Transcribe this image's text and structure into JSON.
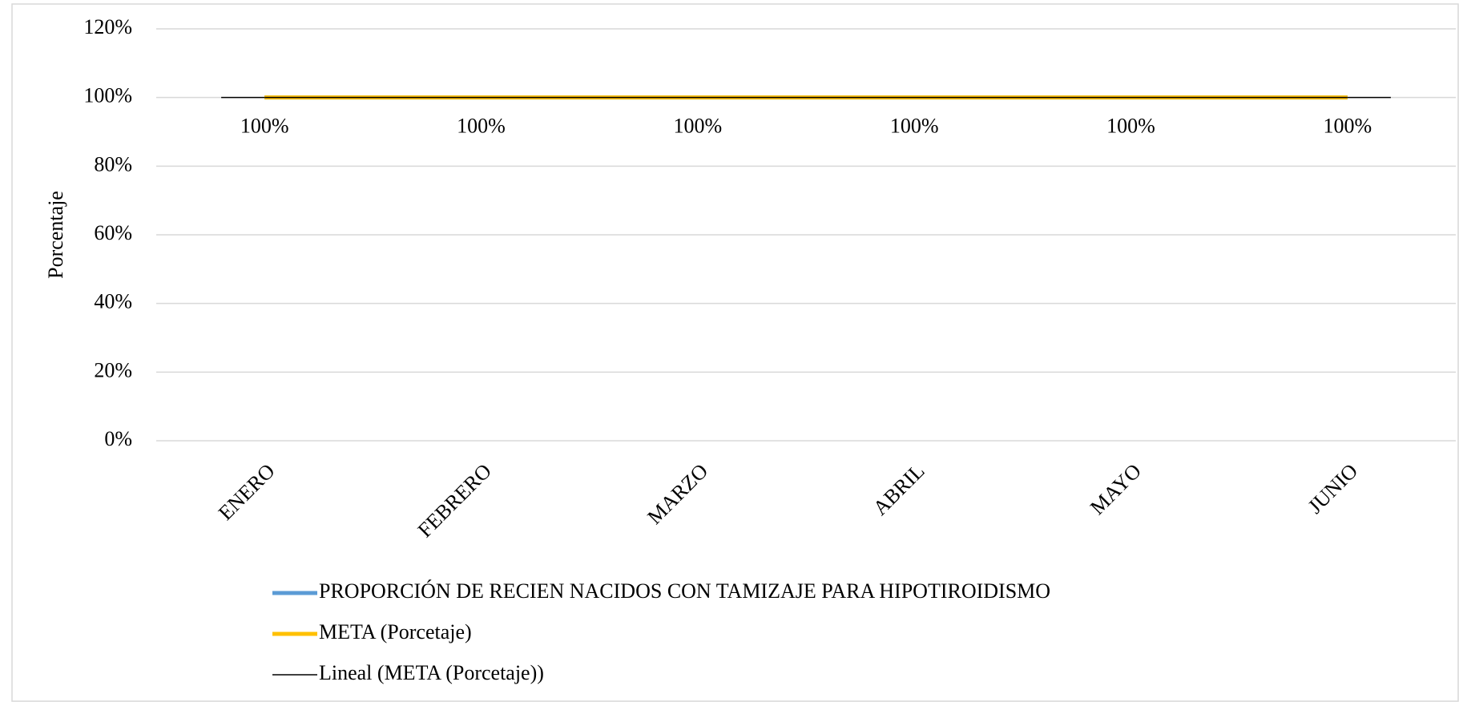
{
  "chart_data": {
    "type": "line",
    "y_axis_label": "Porcentaje",
    "categories": [
      "ENERO",
      "FEBRERO",
      "MARZO",
      "ABRIL",
      "MAYO",
      "JUNIO"
    ],
    "series": [
      {
        "name": "PROPORCIÓN DE RECIEN NACIDOS CON TAMIZAJE PARA HIPOTIROIDISMO",
        "color": "#5b9bd5",
        "values": [
          100,
          100,
          100,
          100,
          100,
          100
        ],
        "value_labels": [
          "100%",
          "100%",
          "100%",
          "100%",
          "100%",
          "100%"
        ]
      },
      {
        "name": "META (Porcetaje)",
        "color": "#ffc000",
        "values": [
          100,
          100,
          100,
          100,
          100,
          100
        ]
      },
      {
        "name": "Lineal (META (Porcetaje))",
        "color": "#000000",
        "values": [
          100,
          100,
          100,
          100,
          100,
          100
        ]
      }
    ],
    "ylim": [
      0,
      120
    ],
    "yticks": [
      {
        "value": 0,
        "label": "0%"
      },
      {
        "value": 20,
        "label": "20%"
      },
      {
        "value": 40,
        "label": "40%"
      },
      {
        "value": 60,
        "label": "60%"
      },
      {
        "value": 80,
        "label": "80%"
      },
      {
        "value": 100,
        "label": "100%"
      },
      {
        "value": 120,
        "label": "120%"
      }
    ],
    "grid": true
  }
}
